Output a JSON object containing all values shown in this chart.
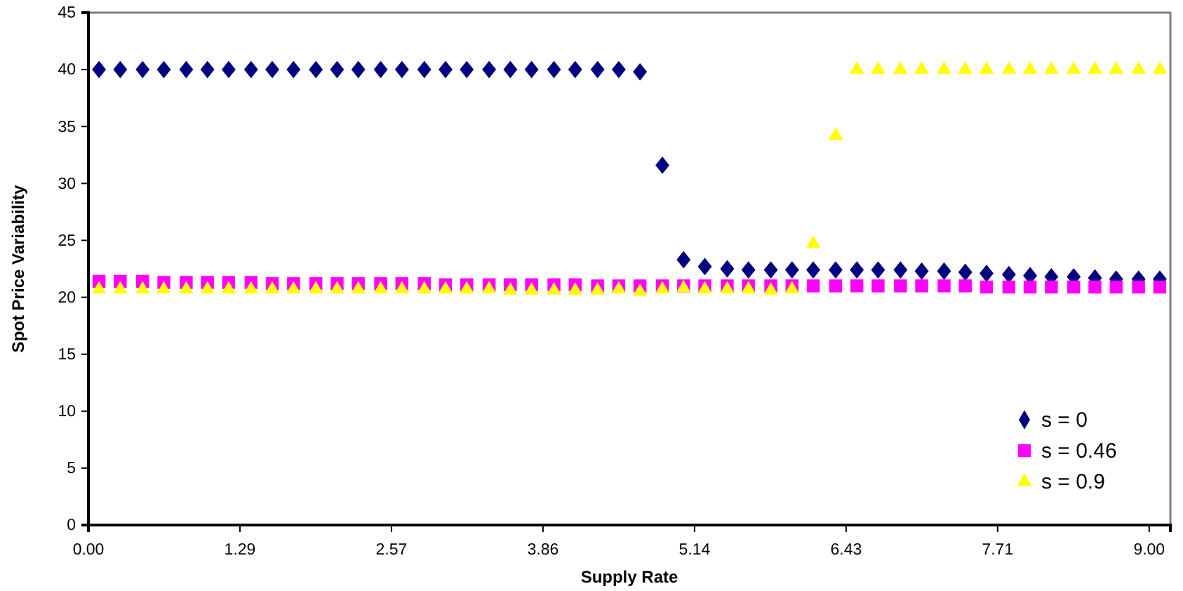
{
  "chart_data": {
    "type": "scatter",
    "xlabel": "Supply Rate",
    "ylabel": "Spot Price Variability",
    "xlim": [
      0,
      9.18
    ],
    "ylim": [
      0,
      45
    ],
    "xticks": [
      {
        "value": 0,
        "label": "0.00"
      },
      {
        "value": 1.2857,
        "label": "1.29"
      },
      {
        "value": 2.5714,
        "label": "2.57"
      },
      {
        "value": 3.8571,
        "label": "3.86"
      },
      {
        "value": 5.1429,
        "label": "5.14"
      },
      {
        "value": 6.4286,
        "label": "6.43"
      },
      {
        "value": 7.7143,
        "label": "7.71"
      },
      {
        "value": 9,
        "label": "9.00"
      }
    ],
    "yticks": [
      0,
      5,
      10,
      15,
      20,
      25,
      30,
      35,
      40,
      45
    ],
    "grid": false,
    "legend": "bottom right",
    "x": [
      0.09,
      0.27,
      0.46,
      0.64,
      0.83,
      1.01,
      1.19,
      1.38,
      1.56,
      1.74,
      1.93,
      2.11,
      2.29,
      2.48,
      2.66,
      2.85,
      3.03,
      3.21,
      3.4,
      3.58,
      3.76,
      3.95,
      4.13,
      4.32,
      4.5,
      4.68,
      4.87,
      5.05,
      5.23,
      5.42,
      5.6,
      5.79,
      5.97,
      6.15,
      6.34,
      6.52,
      6.7,
      6.89,
      7.07,
      7.26,
      7.44,
      7.62,
      7.81,
      7.99,
      8.17,
      8.36,
      8.54,
      8.72,
      8.91,
      9.09
    ],
    "series": [
      {
        "name": "s = 0",
        "color": "#000080",
        "marker": "diamond",
        "values": [
          40,
          40,
          40,
          40,
          40,
          40,
          40,
          40,
          40,
          40,
          40,
          40,
          40,
          40,
          40,
          40,
          40,
          40,
          40,
          40,
          40,
          40,
          40,
          40,
          40,
          39.8,
          31.6,
          23.3,
          22.7,
          22.5,
          22.4,
          22.4,
          22.4,
          22.4,
          22.4,
          22.4,
          22.4,
          22.4,
          22.3,
          22.3,
          22.2,
          22.1,
          22.0,
          21.9,
          21.8,
          21.8,
          21.7,
          21.6,
          21.6,
          21.6
        ]
      },
      {
        "name": "s = 0.46",
        "color": "#ff00ff",
        "marker": "square",
        "values": [
          21.4,
          21.4,
          21.4,
          21.3,
          21.3,
          21.3,
          21.3,
          21.3,
          21.2,
          21.2,
          21.2,
          21.2,
          21.2,
          21.2,
          21.2,
          21.2,
          21.1,
          21.1,
          21.1,
          21.1,
          21.1,
          21.1,
          21.1,
          21.0,
          21.0,
          21.0,
          21.0,
          21.0,
          21.0,
          21.0,
          21.0,
          21.0,
          21.0,
          21.0,
          21.0,
          21.0,
          21.0,
          21.0,
          21.0,
          21.0,
          21.0,
          20.9,
          20.9,
          20.9,
          20.9,
          20.9,
          20.9,
          20.9,
          20.9,
          20.9
        ]
      },
      {
        "name": "s = 0.9",
        "color": "#ffff00",
        "marker": "triangle",
        "values": [
          20.7,
          20.7,
          20.7,
          20.7,
          20.7,
          20.7,
          20.7,
          20.7,
          20.7,
          20.7,
          20.7,
          20.7,
          20.7,
          20.7,
          20.7,
          20.7,
          20.7,
          20.7,
          20.7,
          20.6,
          20.6,
          20.6,
          20.6,
          20.6,
          20.7,
          20.5,
          20.7,
          20.8,
          20.7,
          20.7,
          20.7,
          20.6,
          20.7,
          24.7,
          34.2,
          40,
          40,
          40,
          40,
          40,
          40,
          40,
          40,
          40,
          40,
          40,
          40,
          40,
          40,
          40
        ]
      }
    ]
  }
}
